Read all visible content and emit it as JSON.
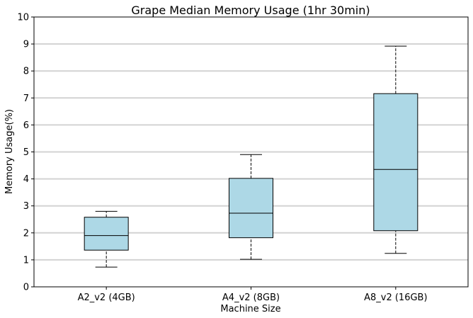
{
  "chart_data": {
    "type": "box",
    "title": "Grape Median Memory Usage (1hr 30min)",
    "xlabel": "Machine Size",
    "ylabel": "Memory Usage(%)",
    "ylim": [
      0,
      10
    ],
    "yticks": [
      0,
      1,
      2,
      3,
      4,
      5,
      6,
      7,
      8,
      9,
      10
    ],
    "grid": "horizontal",
    "box_color": "#add8e6",
    "grid_color": "#d3d3d3",
    "categories": [
      "A2_v2 (4GB)",
      "A4_v2 (8GB)",
      "A8_v2 (16GB)"
    ],
    "boxes": [
      {
        "whisker_low": 0.73,
        "q1": 1.36,
        "median": 1.9,
        "q3": 2.58,
        "whisker_high": 2.8
      },
      {
        "whisker_low": 1.02,
        "q1": 1.82,
        "median": 2.73,
        "q3": 4.02,
        "whisker_high": 4.9
      },
      {
        "whisker_low": 1.24,
        "q1": 2.08,
        "median": 4.35,
        "q3": 7.16,
        "whisker_high": 8.92
      }
    ]
  }
}
